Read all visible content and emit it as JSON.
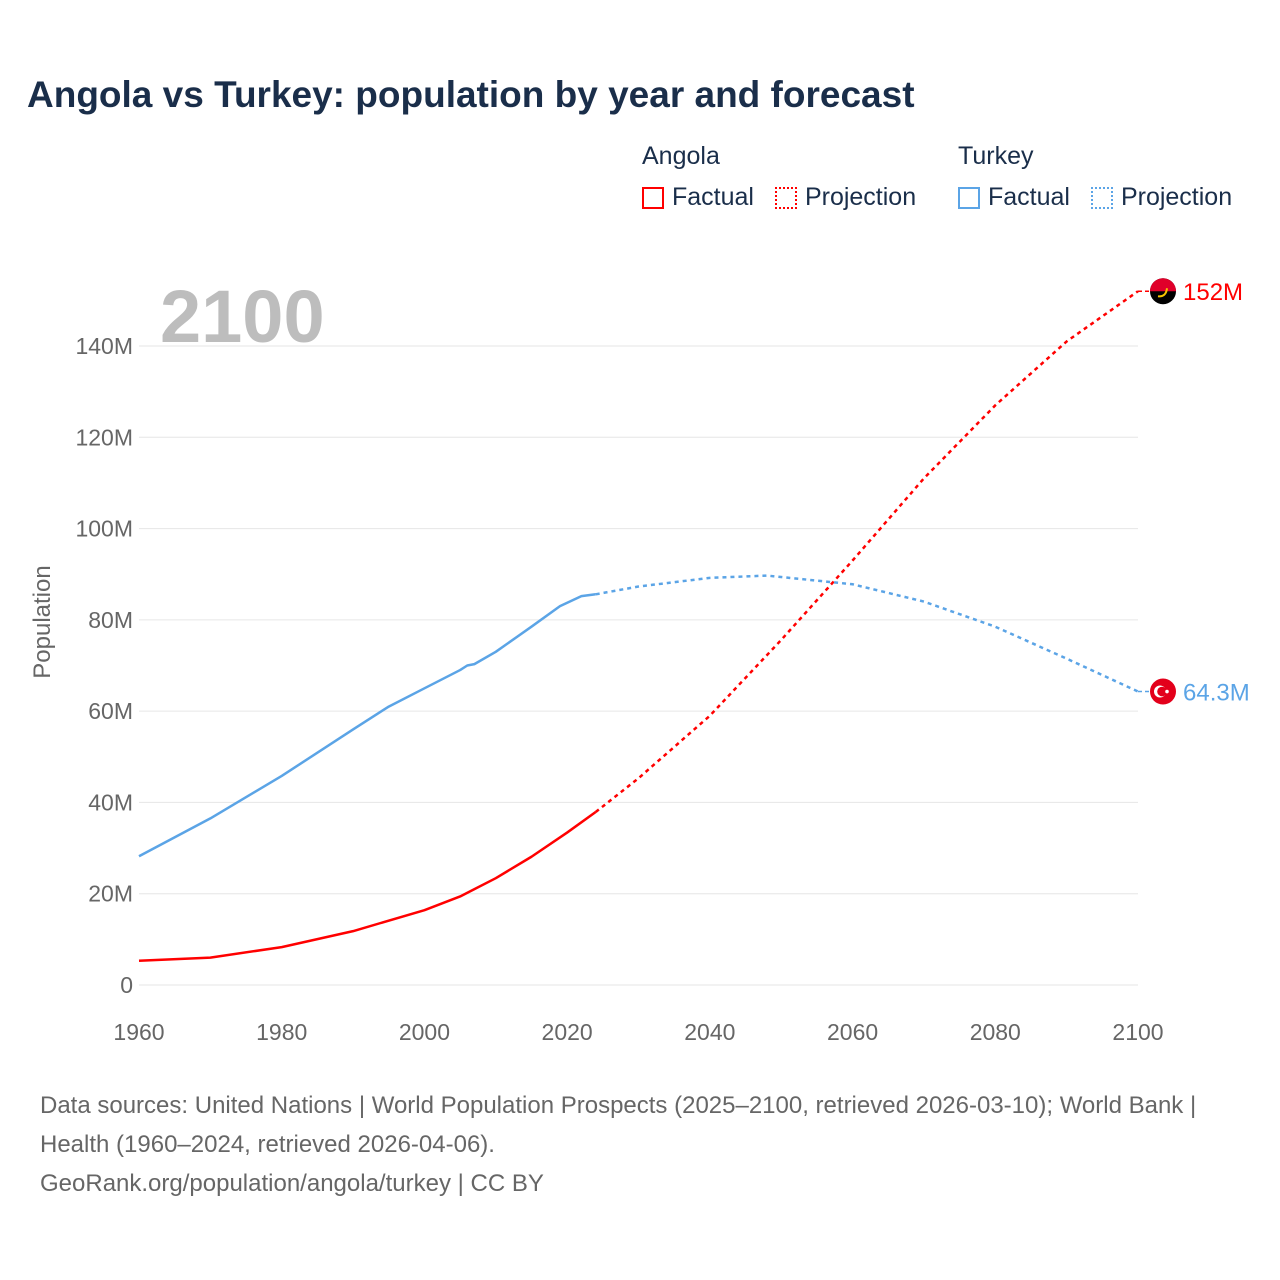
{
  "title": "Angola vs Turkey: population by year and forecast",
  "legend": {
    "groups": [
      {
        "name": "Angola",
        "factual": "Factual",
        "projection": "Projection",
        "color": "#ff0000"
      },
      {
        "name": "Turkey",
        "factual": "Factual",
        "projection": "Projection",
        "color": "#5ba4e6"
      }
    ]
  },
  "chart_data": {
    "type": "line",
    "title": "Angola vs Turkey: population by year and forecast",
    "xlabel": "",
    "ylabel": "Population",
    "xlim": [
      1960,
      2100
    ],
    "ylim": [
      0,
      140
    ],
    "y_unit": "M",
    "x_ticks": [
      "1960",
      "1980",
      "2000",
      "2020",
      "2040",
      "2060",
      "2080",
      "2100"
    ],
    "y_ticks": [
      "0",
      "20M",
      "40M",
      "60M",
      "80M",
      "100M",
      "120M",
      "140M"
    ],
    "year_watermark": "2100",
    "grid": true,
    "series": [
      {
        "name": "Angola",
        "color": "#ff0000",
        "end_label": "152M",
        "factual": {
          "x": [
            1960,
            1970,
            1980,
            1990,
            2000,
            2005,
            2010,
            2015,
            2020,
            2024
          ],
          "y": [
            5.3,
            6.0,
            8.3,
            11.8,
            16.4,
            19.4,
            23.4,
            28.1,
            33.4,
            37.9
          ]
        },
        "projection": {
          "x": [
            2024,
            2030,
            2040,
            2050,
            2060,
            2070,
            2080,
            2090,
            2100
          ],
          "y": [
            37.9,
            45.3,
            59,
            75.6,
            93,
            111,
            127,
            141,
            152
          ]
        }
      },
      {
        "name": "Turkey",
        "color": "#5ba4e6",
        "end_label": "64.3M",
        "factual": {
          "x": [
            1960,
            1970,
            1980,
            1990,
            1995,
            2000,
            2005,
            2006,
            2007,
            2010,
            2015,
            2019,
            2022,
            2024
          ],
          "y": [
            28.2,
            36.5,
            45.8,
            56,
            61,
            65,
            69,
            70,
            70.3,
            73,
            78.5,
            83,
            85.2,
            85.6
          ]
        },
        "projection": {
          "x": [
            2024,
            2030,
            2040,
            2048,
            2060,
            2070,
            2080,
            2090,
            2100
          ],
          "y": [
            85.6,
            87.3,
            89.2,
            89.7,
            87.8,
            84,
            78.5,
            71.5,
            64.3
          ]
        }
      }
    ]
  },
  "footer": {
    "sources": "Data sources: United Nations | World Population Prospects (2025–2100, retrieved 2026-03-10); World Bank | Health (1960–2024, retrieved 2026-04-06).",
    "credit": "GeoRank.org/population/angola/turkey | CC BY"
  }
}
